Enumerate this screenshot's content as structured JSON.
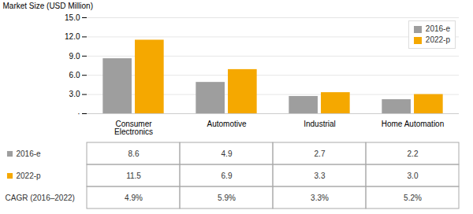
{
  "chart_data": {
    "type": "bar",
    "ylabel": "Market Size (USD Million)",
    "categories": [
      "Consumer\nElectronics",
      "Automotive",
      "Industrial",
      "Home Automation"
    ],
    "series": [
      {
        "name": "2016-e",
        "color": "#9E9E9E",
        "values": [
          8.6,
          4.9,
          2.7,
          2.2
        ]
      },
      {
        "name": "2022-p",
        "color": "#F5A800",
        "values": [
          11.5,
          6.9,
          3.3,
          3.0
        ]
      }
    ],
    "ylim": [
      0,
      15.0
    ],
    "yticks": [
      {
        "value": 0,
        "label": "·"
      },
      {
        "value": 3.0,
        "label": "3.0"
      },
      {
        "value": 6.0,
        "label": "6.0"
      },
      {
        "value": 9.0,
        "label": "9.0"
      },
      {
        "value": 12.0,
        "label": "12.0"
      },
      {
        "value": 15.0,
        "label": "15.0"
      }
    ],
    "grid": true,
    "legend": "upper right",
    "table": {
      "rows": [
        {
          "label": "2016-e",
          "color": "#9E9E9E",
          "values": [
            8.6,
            4.9,
            2.7,
            2.2
          ],
          "value_labels": [
            "8.6",
            "4.9",
            "2.7",
            "2.2"
          ]
        },
        {
          "label": "2022-p",
          "color": "#F5A800",
          "values": [
            11.5,
            6.9,
            3.3,
            3.0
          ],
          "value_labels": [
            "11.5",
            "6.9",
            "3.3",
            "3.0"
          ]
        },
        {
          "label": "CAGR (2016–2022)",
          "values": [
            4.9,
            5.9,
            3.3,
            5.2
          ],
          "value_labels": [
            "4.9%",
            "5.9%",
            "3.3%",
            "5.2%"
          ]
        }
      ]
    }
  }
}
